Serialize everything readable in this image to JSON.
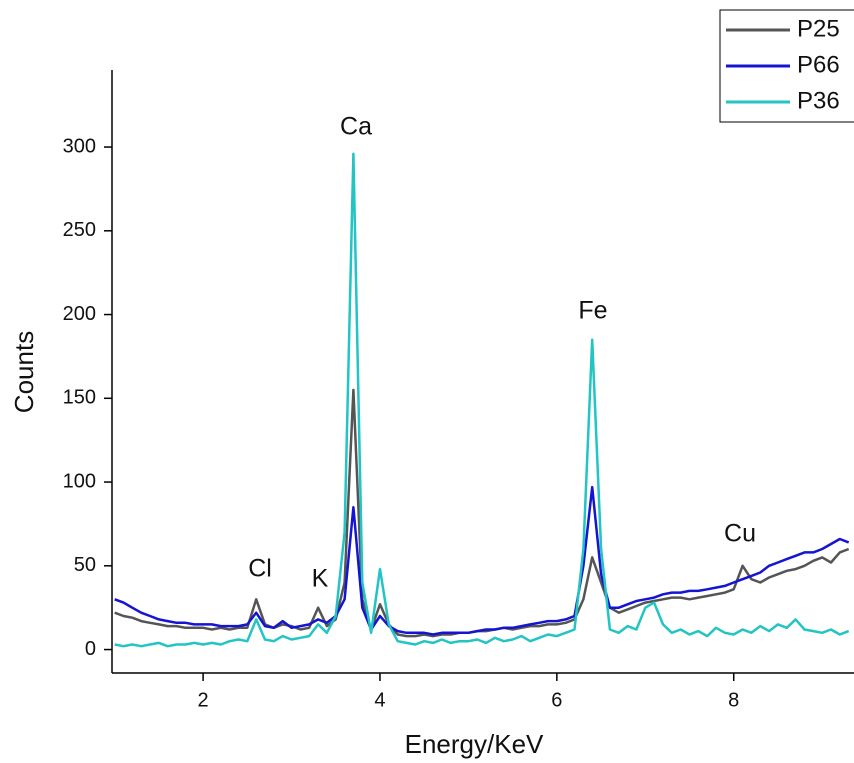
{
  "chart_data": {
    "type": "line",
    "x_label": "Energy/KeV",
    "y_label": "Counts",
    "x": [
      1.0,
      1.1,
      1.2,
      1.3,
      1.4,
      1.5,
      1.6,
      1.7,
      1.8,
      1.9,
      2.0,
      2.1,
      2.2,
      2.3,
      2.4,
      2.5,
      2.6,
      2.7,
      2.8,
      2.9,
      3.0,
      3.1,
      3.2,
      3.3,
      3.4,
      3.5,
      3.6,
      3.7,
      3.8,
      3.9,
      4.0,
      4.1,
      4.2,
      4.3,
      4.4,
      4.5,
      4.6,
      4.7,
      4.8,
      4.9,
      5.0,
      5.1,
      5.2,
      5.3,
      5.4,
      5.5,
      5.6,
      5.7,
      5.8,
      5.9,
      6.0,
      6.1,
      6.2,
      6.3,
      6.4,
      6.5,
      6.6,
      6.7,
      6.8,
      6.9,
      7.0,
      7.1,
      7.2,
      7.3,
      7.4,
      7.5,
      7.6,
      7.7,
      7.8,
      7.9,
      8.0,
      8.1,
      8.2,
      8.3,
      8.4,
      8.5,
      8.6,
      8.7,
      8.8,
      8.9,
      9.0,
      9.1,
      9.2,
      9.3
    ],
    "series": [
      {
        "name": "P25",
        "color": "#555555",
        "values": [
          22,
          20,
          19,
          17,
          16,
          15,
          14,
          14,
          13,
          13,
          13,
          12,
          13,
          12,
          13,
          13,
          30,
          15,
          13,
          15,
          14,
          12,
          13,
          25,
          14,
          18,
          40,
          155,
          30,
          12,
          27,
          15,
          9,
          8,
          8,
          9,
          8,
          9,
          9,
          10,
          10,
          11,
          11,
          12,
          13,
          12,
          13,
          14,
          14,
          15,
          15,
          16,
          18,
          30,
          55,
          40,
          25,
          22,
          24,
          26,
          28,
          29,
          30,
          31,
          31,
          30,
          31,
          32,
          33,
          34,
          36,
          50,
          42,
          40,
          43,
          45,
          47,
          48,
          50,
          53,
          55,
          52,
          58,
          60
        ]
      },
      {
        "name": "P66",
        "color": "#1414d2",
        "values": [
          30,
          28,
          25,
          22,
          20,
          18,
          17,
          16,
          16,
          15,
          15,
          15,
          14,
          14,
          14,
          15,
          22,
          14,
          13,
          17,
          13,
          14,
          15,
          18,
          16,
          20,
          30,
          85,
          25,
          12,
          20,
          14,
          11,
          10,
          10,
          10,
          9,
          10,
          10,
          10,
          10,
          11,
          12,
          12,
          13,
          13,
          14,
          15,
          16,
          17,
          17,
          18,
          20,
          50,
          97,
          45,
          25,
          25,
          27,
          29,
          30,
          31,
          33,
          34,
          34,
          35,
          35,
          36,
          37,
          38,
          40,
          42,
          44,
          46,
          50,
          52,
          54,
          56,
          58,
          58,
          60,
          63,
          66,
          64
        ]
      },
      {
        "name": "P36",
        "color": "#22c4c4",
        "values": [
          3,
          2,
          3,
          2,
          3,
          4,
          2,
          3,
          3,
          4,
          3,
          4,
          3,
          5,
          6,
          5,
          18,
          6,
          5,
          8,
          6,
          7,
          8,
          15,
          10,
          20,
          70,
          296,
          40,
          10,
          48,
          15,
          5,
          4,
          3,
          5,
          4,
          6,
          4,
          5,
          5,
          6,
          4,
          7,
          5,
          6,
          8,
          5,
          7,
          9,
          8,
          10,
          12,
          60,
          185,
          60,
          12,
          10,
          14,
          12,
          25,
          28,
          15,
          10,
          12,
          9,
          11,
          8,
          13,
          10,
          9,
          12,
          10,
          14,
          11,
          15,
          13,
          18,
          12,
          11,
          10,
          12,
          9,
          11
        ]
      }
    ],
    "annotations": [
      "Ca",
      "Fe",
      "Cl",
      "K",
      "Cu"
    ],
    "xlim": [
      0.97,
      9.36
    ],
    "ylim": [
      -14,
      346
    ],
    "xticks": [
      2,
      4,
      6,
      8
    ],
    "yticks": [
      0,
      50,
      100,
      150,
      200,
      250,
      300
    ],
    "grid": false,
    "legend": "upper right"
  }
}
